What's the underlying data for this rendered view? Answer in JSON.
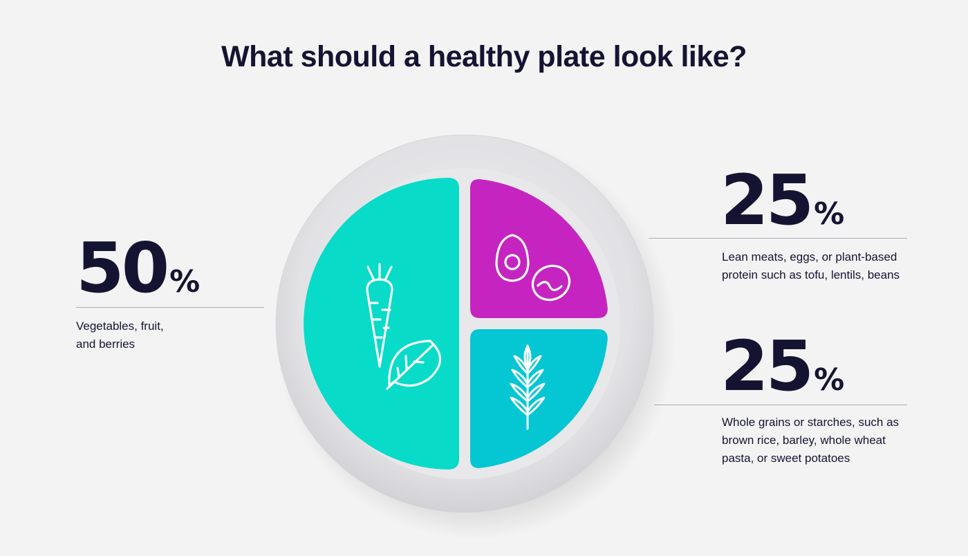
{
  "title": "What should a healthy plate look like?",
  "chart_data": {
    "type": "pie",
    "title": "What should a healthy plate look like?",
    "slices": [
      {
        "value": 50,
        "label": "50",
        "unit": "%",
        "description_lines": [
          "Vegetables, fruit,",
          "and berries"
        ],
        "color": "#08dbc8",
        "icon": "carrot-and-spinach-icon"
      },
      {
        "value": 25,
        "label": "25",
        "unit": "%",
        "description_lines": [
          "Lean meats, eggs, or plant-based",
          "protein such as tofu, lentils, beans"
        ],
        "color": "#c524c1",
        "icon": "egg-and-beans-icon"
      },
      {
        "value": 25,
        "label": "25",
        "unit": "%",
        "description_lines": [
          "Whole grains or starches, such as",
          "brown rice, barley, whole wheat",
          "pasta, or sweet potatoes"
        ],
        "color": "#05c6d3",
        "icon": "wheat-icon"
      }
    ]
  },
  "colors": {
    "background": "#f3f3f4",
    "text": "#141432",
    "plate": "#e4e4e6",
    "plate_inner": "#eaeaec",
    "vegetables": "#08dbc8",
    "protein": "#c524c1",
    "grains": "#05c6d3"
  }
}
